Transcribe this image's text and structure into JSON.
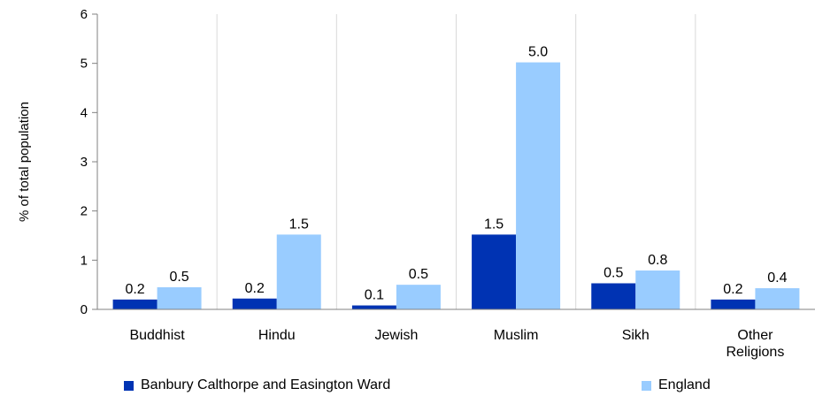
{
  "chart_data": {
    "type": "bar",
    "title": "",
    "xlabel": "",
    "ylabel": "% of total population",
    "ylim": [
      0,
      6
    ],
    "yticks": [
      "0",
      "1",
      "2",
      "3",
      "4",
      "5",
      "6"
    ],
    "categories": [
      [
        "Buddhist"
      ],
      [
        "Hindu"
      ],
      [
        "Jewish"
      ],
      [
        "Muslim"
      ],
      [
        "Sikh"
      ],
      [
        "Other",
        "Religions"
      ]
    ],
    "series": [
      {
        "name": "Banbury Calthorpe and Easington Ward",
        "color": "#0033b3",
        "values": [
          0.2,
          0.22,
          0.08,
          1.52,
          0.53,
          0.2
        ],
        "labels": [
          "0.2",
          "0.2",
          "0.1",
          "1.5",
          "0.5",
          "0.2"
        ]
      },
      {
        "name": "England",
        "color": "#99ccff",
        "values": [
          0.45,
          1.52,
          0.5,
          5.02,
          0.79,
          0.43
        ],
        "labels": [
          "0.5",
          "1.5",
          "0.5",
          "5.0",
          "0.8",
          "0.4"
        ]
      }
    ],
    "grid": "vertical",
    "legend_position": "bottom"
  }
}
